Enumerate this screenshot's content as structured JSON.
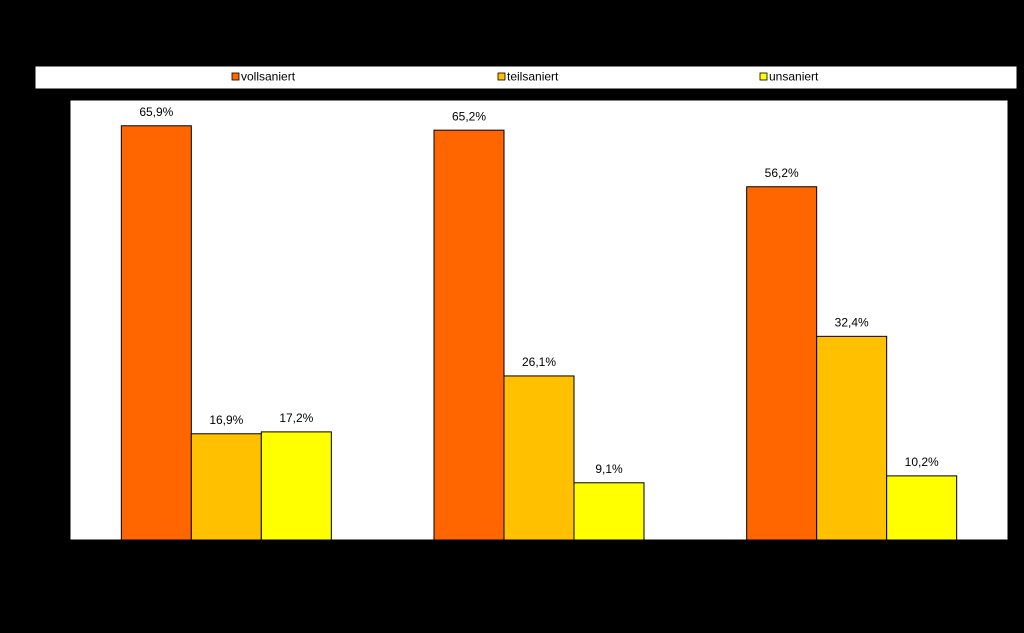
{
  "chart_data": {
    "type": "bar",
    "categories": [
      null,
      null,
      null
    ],
    "series": [
      {
        "name": "vollsaniert",
        "color": "#ff6600",
        "values": [
          65.9,
          65.2,
          56.2
        ],
        "value_labels": [
          "65,9%",
          "65,2%",
          "56,2%"
        ]
      },
      {
        "name": "teilsaniert",
        "color": "#ffc000",
        "values": [
          16.9,
          26.1,
          32.4
        ],
        "value_labels": [
          "16,9%",
          "26,1%",
          "32,4%"
        ]
      },
      {
        "name": "unsaniert",
        "color": "#ffff00",
        "values": [
          17.2,
          9.1,
          10.2
        ],
        "value_labels": [
          "17,2%",
          "9,1%",
          "10,2%"
        ]
      }
    ],
    "ylim": [
      0,
      70
    ],
    "legend": "top"
  }
}
